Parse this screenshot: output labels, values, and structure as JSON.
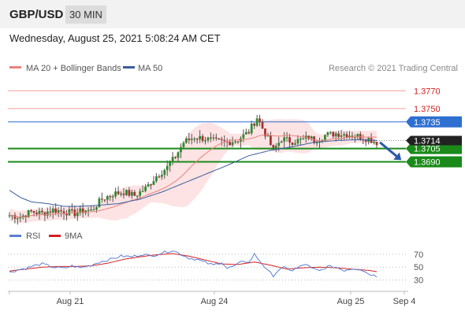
{
  "header": {
    "pair": "GBP/USD",
    "timeframe": "30 MIN",
    "timestamp": "Wednesday, August 25, 2021 5:08:24 AM CET"
  },
  "legend": {
    "ma20": "MA 20 + Bollinger Bands",
    "ma50": "MA 50",
    "credit": "Research © 2021 Trading Central",
    "rsi": "RSI",
    "rsi_ma": "9MA"
  },
  "colors": {
    "ma20": "#e8837f",
    "ma50": "#3b5e9c",
    "band_fill": "#fde3e3",
    "up_candle": "#2e8b2e",
    "down_candle": "#a83232",
    "support": "#1a8a1a",
    "rsi": "#5b7fd6",
    "rsi_ma": "#d42020",
    "price_marker": "#222222",
    "arrow": "#2a5aa8"
  },
  "chart_data": [
    {
      "type": "candlestick",
      "instrument": "GBP/USD",
      "interval": "30 MIN",
      "x_ticks": [
        "Aug 21",
        "Aug 24",
        "Aug 25",
        "Sep 4"
      ],
      "ylim": [
        1.3624,
        1.3788
      ],
      "levels": [
        {
          "label": "1.3770",
          "value": 1.377,
          "kind": "resistance"
        },
        {
          "label": "1.3750",
          "value": 1.375,
          "kind": "resistance"
        },
        {
          "label": "1.3735",
          "value": 1.3735,
          "kind": "pivot"
        },
        {
          "label": "1.3705",
          "value": 1.3705,
          "kind": "support"
        },
        {
          "label": "1.3690",
          "value": 1.369,
          "kind": "support"
        }
      ],
      "last_price": {
        "label": "1.3714",
        "value": 1.3714
      },
      "forecast": {
        "from": 1.3712,
        "to": 1.3693,
        "direction": "down"
      },
      "close_path": [
        [
          0,
          1.363
        ],
        [
          4,
          1.3628
        ],
        [
          8,
          1.3634
        ],
        [
          12,
          1.3632
        ],
        [
          16,
          1.3636
        ],
        [
          20,
          1.3634
        ],
        [
          24,
          1.3632
        ],
        [
          28,
          1.3636
        ],
        [
          30,
          1.3635
        ],
        [
          34,
          1.3648
        ],
        [
          38,
          1.3654
        ],
        [
          42,
          1.3656
        ],
        [
          46,
          1.3652
        ],
        [
          50,
          1.366
        ],
        [
          54,
          1.3674
        ],
        [
          58,
          1.3684
        ],
        [
          61,
          1.3696
        ],
        [
          64,
          1.3712
        ],
        [
          68,
          1.3718
        ],
        [
          72,
          1.3716
        ],
        [
          76,
          1.3713
        ],
        [
          80,
          1.3712
        ],
        [
          84,
          1.3715
        ],
        [
          88,
          1.3724
        ],
        [
          91,
          1.374
        ],
        [
          94,
          1.3722
        ],
        [
          97,
          1.3703
        ],
        [
          100,
          1.3716
        ],
        [
          104,
          1.3713
        ],
        [
          108,
          1.3715
        ],
        [
          110,
          1.3718
        ],
        [
          112,
          1.3714
        ],
        [
          116,
          1.372
        ],
        [
          120,
          1.3722
        ],
        [
          124,
          1.3721
        ],
        [
          128,
          1.3719
        ],
        [
          132,
          1.3716
        ],
        [
          135,
          1.3712
        ]
      ],
      "ma50_path": [
        [
          0,
          1.3658
        ],
        [
          4,
          1.365
        ],
        [
          8,
          1.3645
        ],
        [
          14,
          1.3643
        ],
        [
          20,
          1.364
        ],
        [
          26,
          1.364
        ],
        [
          32,
          1.3641
        ],
        [
          40,
          1.3643
        ],
        [
          48,
          1.3648
        ],
        [
          56,
          1.3656
        ],
        [
          64,
          1.3666
        ],
        [
          72,
          1.3676
        ],
        [
          80,
          1.3686
        ],
        [
          88,
          1.3697
        ],
        [
          96,
          1.3703
        ],
        [
          104,
          1.3707
        ],
        [
          112,
          1.3712
        ],
        [
          120,
          1.3714
        ],
        [
          128,
          1.3715
        ],
        [
          135,
          1.3714
        ]
      ],
      "series": [
        {
          "name": "MA 20 + Bollinger Bands"
        },
        {
          "name": "MA 50"
        }
      ]
    },
    {
      "type": "line",
      "x_ticks": [
        "Aug 21",
        "Aug 24",
        "Aug 25",
        "Sep 4"
      ],
      "ylim": [
        15,
        88
      ],
      "y_ticks": [
        70,
        50,
        30
      ],
      "series": [
        {
          "name": "RSI",
          "path": [
            [
              0,
              42
            ],
            [
              3,
              46
            ],
            [
              6,
              48
            ],
            [
              9,
              52
            ],
            [
              12,
              55
            ],
            [
              16,
              50
            ],
            [
              20,
              48
            ],
            [
              23,
              52
            ],
            [
              26,
              49
            ],
            [
              30,
              53
            ],
            [
              33,
              58
            ],
            [
              37,
              62
            ],
            [
              41,
              67
            ],
            [
              45,
              66
            ],
            [
              49,
              70
            ],
            [
              52,
              67
            ],
            [
              56,
              72
            ],
            [
              60,
              76
            ],
            [
              63,
              70
            ],
            [
              66,
              64
            ],
            [
              69,
              62
            ],
            [
              72,
              57
            ],
            [
              75,
              53
            ],
            [
              78,
              58
            ],
            [
              80,
              48
            ],
            [
              83,
              52
            ],
            [
              86,
              60
            ],
            [
              88,
              57
            ],
            [
              90,
              70
            ],
            [
              92,
              60
            ],
            [
              95,
              44
            ],
            [
              97,
              37
            ],
            [
              99,
              46
            ],
            [
              101,
              49
            ],
            [
              104,
              45
            ],
            [
              107,
              51
            ],
            [
              109,
              55
            ],
            [
              111,
              48
            ],
            [
              114,
              44
            ],
            [
              117,
              51
            ],
            [
              120,
              50
            ],
            [
              123,
              45
            ],
            [
              126,
              48
            ],
            [
              129,
              47
            ],
            [
              132,
              40
            ],
            [
              135,
              36
            ]
          ]
        },
        {
          "name": "9MA",
          "path": [
            [
              0,
              44
            ],
            [
              6,
              47
            ],
            [
              12,
              50
            ],
            [
              18,
              51
            ],
            [
              24,
              51
            ],
            [
              30,
              52
            ],
            [
              36,
              56
            ],
            [
              42,
              62
            ],
            [
              48,
              66
            ],
            [
              54,
              69
            ],
            [
              60,
              71
            ],
            [
              66,
              67
            ],
            [
              72,
              61
            ],
            [
              78,
              55
            ],
            [
              84,
              54
            ],
            [
              90,
              58
            ],
            [
              96,
              53
            ],
            [
              102,
              47
            ],
            [
              108,
              49
            ],
            [
              114,
              50
            ],
            [
              120,
              49
            ],
            [
              126,
              47
            ],
            [
              132,
              45
            ],
            [
              135,
              43
            ]
          ]
        }
      ]
    }
  ]
}
